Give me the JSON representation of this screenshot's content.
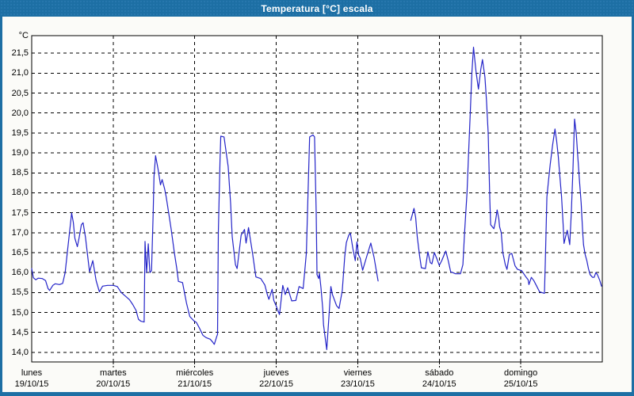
{
  "window": {
    "title": "Temperatura [°C] escala"
  },
  "colors": {
    "titlebar": "#1d6fa4",
    "window_border": "#1d6fa4",
    "content_bg": "#fbfbf8",
    "plot_bg": "#ffffff",
    "plot_border": "#000000",
    "grid": "#000000",
    "line": "#2424c8",
    "title_text": "#ffffff",
    "label_text": "#000000"
  },
  "chart_data": {
    "type": "line",
    "title": "Temperatura [°C] escala",
    "ylabel": "°C",
    "xlabel": "",
    "legend": "none",
    "grid": "dashed",
    "ylim": [
      13.76,
      21.94
    ],
    "xlim_days": [
      0,
      7
    ],
    "y_ticks": [
      {
        "value": 21.5,
        "label": "21,5"
      },
      {
        "value": 21.0,
        "label": "21,0"
      },
      {
        "value": 20.5,
        "label": "20,5"
      },
      {
        "value": 20.0,
        "label": "20,0"
      },
      {
        "value": 19.5,
        "label": "19,5"
      },
      {
        "value": 19.0,
        "label": "19,0"
      },
      {
        "value": 18.5,
        "label": "18,5"
      },
      {
        "value": 18.0,
        "label": "18,0"
      },
      {
        "value": 17.5,
        "label": "17,5"
      },
      {
        "value": 17.0,
        "label": "17,0"
      },
      {
        "value": 16.5,
        "label": "16,5"
      },
      {
        "value": 16.0,
        "label": "16,0"
      },
      {
        "value": 15.5,
        "label": "15,5"
      },
      {
        "value": 15.0,
        "label": "15,0"
      },
      {
        "value": 14.5,
        "label": "14,5"
      },
      {
        "value": 14.0,
        "label": "14,0"
      }
    ],
    "x_days": [
      {
        "name": "lunes",
        "date": "19/10/15"
      },
      {
        "name": "martes",
        "date": "20/10/15"
      },
      {
        "name": "miércoles",
        "date": "21/10/15"
      },
      {
        "name": "jueves",
        "date": "22/10/15"
      },
      {
        "name": "viernes",
        "date": "23/10/15"
      },
      {
        "name": "sábado",
        "date": "24/10/15"
      },
      {
        "name": "domingo",
        "date": "25/10/15"
      }
    ],
    "series": [
      {
        "name": "Temperatura",
        "color": "#2424c8",
        "x_unit": "days_from_monday_19_10_15",
        "y_unit": "°C",
        "segments": [
          [
            [
              0.0,
              16.1
            ],
            [
              0.02,
              15.87
            ],
            [
              0.05,
              15.82
            ],
            [
              0.08,
              15.86
            ],
            [
              0.13,
              15.85
            ],
            [
              0.17,
              15.8
            ],
            [
              0.2,
              15.6
            ],
            [
              0.22,
              15.55
            ],
            [
              0.26,
              15.68
            ],
            [
              0.29,
              15.72
            ],
            [
              0.34,
              15.7
            ],
            [
              0.38,
              15.73
            ],
            [
              0.41,
              16.0
            ],
            [
              0.44,
              16.57
            ],
            [
              0.46,
              16.93
            ],
            [
              0.49,
              17.49
            ],
            [
              0.51,
              17.26
            ],
            [
              0.53,
              16.86
            ],
            [
              0.56,
              16.65
            ],
            [
              0.58,
              16.86
            ],
            [
              0.61,
              17.2
            ],
            [
              0.63,
              17.25
            ],
            [
              0.66,
              16.88
            ],
            [
              0.69,
              16.35
            ],
            [
              0.71,
              16.02
            ],
            [
              0.75,
              16.3
            ],
            [
              0.79,
              15.8
            ],
            [
              0.83,
              15.52
            ],
            [
              0.87,
              15.66
            ],
            [
              0.93,
              15.68
            ],
            [
              1.0,
              15.68
            ],
            [
              1.05,
              15.65
            ],
            [
              1.1,
              15.5
            ],
            [
              1.15,
              15.41
            ],
            [
              1.2,
              15.32
            ],
            [
              1.24,
              15.2
            ],
            [
              1.28,
              15.05
            ],
            [
              1.31,
              14.83
            ],
            [
              1.34,
              14.78
            ],
            [
              1.38,
              14.76
            ],
            [
              1.39,
              16.78
            ],
            [
              1.41,
              16.0
            ],
            [
              1.43,
              16.72
            ],
            [
              1.45,
              16.0
            ],
            [
              1.47,
              16.05
            ],
            [
              1.49,
              17.5
            ],
            [
              1.5,
              18.4
            ],
            [
              1.52,
              18.93
            ],
            [
              1.55,
              18.6
            ],
            [
              1.58,
              18.2
            ],
            [
              1.6,
              18.33
            ],
            [
              1.63,
              18.1
            ],
            [
              1.65,
              17.9
            ],
            [
              1.68,
              17.5
            ],
            [
              1.71,
              17.1
            ],
            [
              1.75,
              16.5
            ],
            [
              1.78,
              16.1
            ],
            [
              1.8,
              15.78
            ],
            [
              1.85,
              15.75
            ],
            [
              1.9,
              15.23
            ],
            [
              1.94,
              14.9
            ],
            [
              1.99,
              14.79
            ],
            [
              2.02,
              14.75
            ],
            [
              2.06,
              14.6
            ],
            [
              2.1,
              14.43
            ],
            [
              2.14,
              14.37
            ],
            [
              2.19,
              14.33
            ],
            [
              2.22,
              14.26
            ],
            [
              2.24,
              14.2
            ],
            [
              2.27,
              14.4
            ],
            [
              2.28,
              14.45
            ],
            [
              2.29,
              17.0
            ],
            [
              2.31,
              18.8
            ],
            [
              2.32,
              19.42
            ],
            [
              2.36,
              19.4
            ],
            [
              2.38,
              19.1
            ],
            [
              2.41,
              18.66
            ],
            [
              2.44,
              17.73
            ],
            [
              2.46,
              16.9
            ],
            [
              2.5,
              16.2
            ],
            [
              2.52,
              16.1
            ],
            [
              2.57,
              16.94
            ],
            [
              2.61,
              17.08
            ],
            [
              2.63,
              16.74
            ],
            [
              2.66,
              17.13
            ],
            [
              2.71,
              16.48
            ],
            [
              2.75,
              15.89
            ],
            [
              2.81,
              15.85
            ],
            [
              2.86,
              15.69
            ],
            [
              2.89,
              15.45
            ],
            [
              2.91,
              15.33
            ],
            [
              2.95,
              15.58
            ],
            [
              2.97,
              15.3
            ],
            [
              3.0,
              15.16
            ],
            [
              3.02,
              15.05
            ],
            [
              3.04,
              14.95
            ],
            [
              3.08,
              15.68
            ],
            [
              3.11,
              15.45
            ],
            [
              3.14,
              15.62
            ],
            [
              3.19,
              15.29
            ],
            [
              3.24,
              15.3
            ],
            [
              3.28,
              15.65
            ],
            [
              3.33,
              15.6
            ],
            [
              3.35,
              16.05
            ],
            [
              3.37,
              16.5
            ],
            [
              3.39,
              18.0
            ],
            [
              3.41,
              19.4
            ],
            [
              3.45,
              19.45
            ],
            [
              3.47,
              19.4
            ],
            [
              3.49,
              17.5
            ],
            [
              3.5,
              15.95
            ],
            [
              3.52,
              15.85
            ],
            [
              3.53,
              15.98
            ],
            [
              3.55,
              15.6
            ],
            [
              3.57,
              15.1
            ],
            [
              3.58,
              14.7
            ],
            [
              3.6,
              14.37
            ],
            [
              3.62,
              14.07
            ],
            [
              3.65,
              15.0
            ],
            [
              3.67,
              15.65
            ],
            [
              3.69,
              15.45
            ],
            [
              3.74,
              15.17
            ],
            [
              3.77,
              15.1
            ],
            [
              3.81,
              15.55
            ],
            [
              3.84,
              16.4
            ],
            [
              3.86,
              16.75
            ],
            [
              3.89,
              16.94
            ],
            [
              3.91,
              16.98
            ],
            [
              3.94,
              16.6
            ],
            [
              3.97,
              16.3
            ],
            [
              3.99,
              16.77
            ],
            [
              4.01,
              16.44
            ],
            [
              4.03,
              16.36
            ],
            [
              4.06,
              16.06
            ],
            [
              4.11,
              16.4
            ],
            [
              4.16,
              16.74
            ],
            [
              4.2,
              16.38
            ],
            [
              4.23,
              16.02
            ],
            [
              4.25,
              15.79
            ]
          ],
          [
            [
              4.65,
              17.31
            ],
            [
              4.69,
              17.61
            ],
            [
              4.71,
              17.38
            ],
            [
              4.73,
              16.9
            ],
            [
              4.76,
              16.4
            ],
            [
              4.78,
              16.12
            ],
            [
              4.83,
              16.1
            ],
            [
              4.86,
              16.52
            ],
            [
              4.89,
              16.25
            ],
            [
              4.91,
              16.22
            ],
            [
              4.94,
              16.5
            ],
            [
              4.97,
              16.35
            ],
            [
              5.0,
              16.18
            ],
            [
              5.03,
              16.3
            ],
            [
              5.06,
              16.45
            ],
            [
              5.08,
              16.54
            ],
            [
              5.11,
              16.3
            ],
            [
              5.14,
              16.02
            ],
            [
              5.2,
              15.97
            ],
            [
              5.26,
              15.97
            ],
            [
              5.29,
              16.2
            ],
            [
              5.31,
              17.0
            ],
            [
              5.34,
              18.0
            ],
            [
              5.36,
              19.0
            ],
            [
              5.38,
              20.0
            ],
            [
              5.4,
              21.0
            ],
            [
              5.42,
              21.65
            ],
            [
              5.45,
              21.05
            ],
            [
              5.48,
              20.6
            ],
            [
              5.51,
              21.1
            ],
            [
              5.53,
              21.34
            ],
            [
              5.56,
              20.9
            ],
            [
              5.58,
              20.3
            ],
            [
              5.6,
              19.5
            ],
            [
              5.62,
              17.8
            ],
            [
              5.63,
              17.2
            ],
            [
              5.67,
              17.1
            ],
            [
              5.69,
              17.3
            ],
            [
              5.71,
              17.57
            ],
            [
              5.73,
              17.35
            ],
            [
              5.74,
              17.15
            ],
            [
              5.76,
              17.0
            ],
            [
              5.78,
              16.5
            ],
            [
              5.81,
              16.2
            ],
            [
              5.83,
              16.08
            ],
            [
              5.86,
              16.45
            ],
            [
              5.89,
              16.48
            ],
            [
              5.93,
              16.17
            ],
            [
              5.96,
              16.08
            ],
            [
              6.01,
              16.05
            ],
            [
              6.06,
              15.9
            ],
            [
              6.09,
              15.82
            ],
            [
              6.1,
              15.7
            ],
            [
              6.13,
              15.88
            ],
            [
              6.16,
              15.8
            ],
            [
              6.19,
              15.68
            ],
            [
              6.23,
              15.52
            ],
            [
              6.29,
              15.48
            ],
            [
              6.3,
              16.2
            ],
            [
              6.32,
              17.9
            ],
            [
              6.34,
              18.3
            ],
            [
              6.36,
              18.7
            ],
            [
              6.39,
              19.2
            ],
            [
              6.42,
              19.6
            ],
            [
              6.44,
              19.3
            ],
            [
              6.46,
              18.9
            ],
            [
              6.48,
              18.4
            ],
            [
              6.5,
              17.9
            ],
            [
              6.52,
              17.2
            ],
            [
              6.53,
              16.73
            ],
            [
              6.55,
              16.9
            ],
            [
              6.57,
              17.06
            ],
            [
              6.6,
              16.7
            ],
            [
              6.62,
              17.5
            ],
            [
              6.64,
              18.6
            ],
            [
              6.66,
              19.85
            ],
            [
              6.68,
              19.5
            ],
            [
              6.7,
              18.9
            ],
            [
              6.72,
              18.3
            ],
            [
              6.74,
              17.75
            ],
            [
              6.76,
              17.0
            ],
            [
              6.77,
              16.7
            ],
            [
              6.79,
              16.45
            ],
            [
              6.81,
              16.3
            ],
            [
              6.83,
              16.1
            ],
            [
              6.85,
              15.95
            ],
            [
              6.88,
              15.88
            ],
            [
              6.9,
              15.88
            ],
            [
              6.92,
              16.0
            ],
            [
              6.94,
              15.95
            ],
            [
              6.97,
              15.8
            ],
            [
              6.99,
              15.66
            ]
          ]
        ]
      }
    ]
  }
}
